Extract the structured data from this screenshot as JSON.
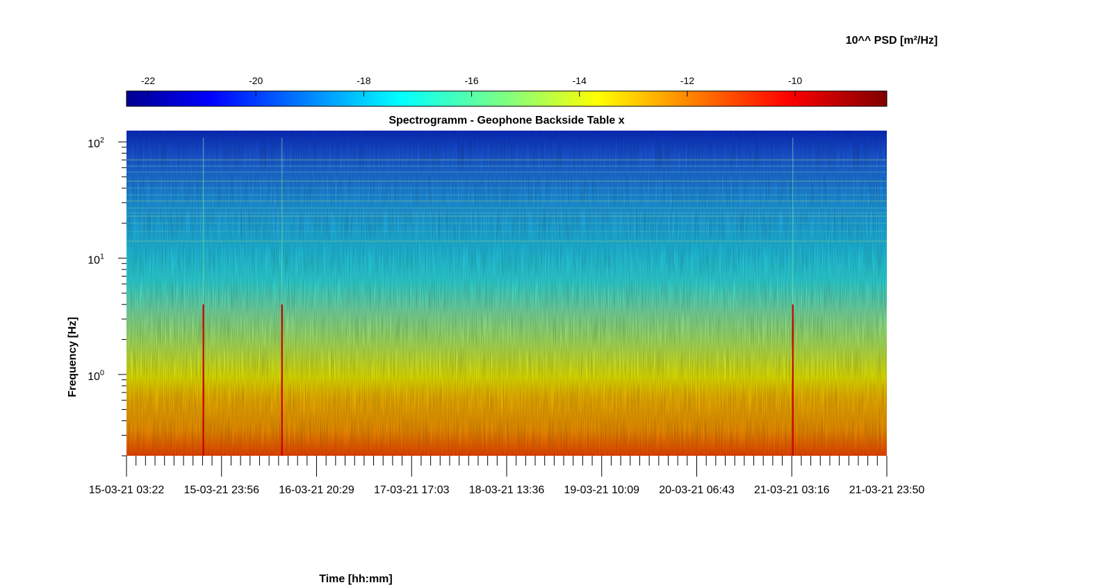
{
  "chart_data": {
    "type": "heatmap",
    "title": "Spectrogramm - Geophone Backside Table x",
    "xlabel": "Time [hh:mm]",
    "ylabel": "Frequency [Hz]",
    "colorbar": {
      "label": "10^^ PSD [m²/Hz]",
      "range": [
        -22.4,
        -8.3
      ],
      "ticks": [
        -22,
        -20,
        -18,
        -16,
        -14,
        -12,
        -10
      ],
      "colormap": "jet",
      "location": "top"
    },
    "x_ticks": [
      "15-03-21 03:22",
      "15-03-21 23:56",
      "16-03-21 20:29",
      "17-03-21 17:03",
      "18-03-21 13:36",
      "19-03-21 10:09",
      "20-03-21 06:43",
      "21-03-21 03:16",
      "21-03-21 23:50"
    ],
    "x_range": [
      "15-03-21 03:22",
      "21-03-21 23:50"
    ],
    "y_scale": "log",
    "y_range": [
      0.2,
      125
    ],
    "y_ticks": [
      1,
      10,
      100
    ],
    "y_tick_labels": [
      {
        "base": "10",
        "exp": "0"
      },
      {
        "base": "10",
        "exp": "1"
      },
      {
        "base": "10",
        "exp": "2"
      }
    ],
    "psd_profile": {
      "freq_hz": [
        0.2,
        0.3,
        0.5,
        0.7,
        1.0,
        2.0,
        4.0,
        7.0,
        10,
        20,
        30,
        50,
        80,
        125
      ],
      "log10_psd": [
        -10.9,
        -11.5,
        -11.9,
        -12.4,
        -13.2,
        -14.1,
        -14.9,
        -16.0,
        -16.7,
        -17.2,
        -17.6,
        -18.3,
        -19.4,
        -20.2
      ]
    },
    "transients": [
      {
        "time": "15-03-21 20:00",
        "peak_log10_psd": -10.0
      },
      {
        "time": "16-03-21 13:00",
        "peak_log10_psd": -10.5
      },
      {
        "time": "21-03-21 03:30",
        "peak_log10_psd": -10.4
      }
    ],
    "grid": false
  }
}
